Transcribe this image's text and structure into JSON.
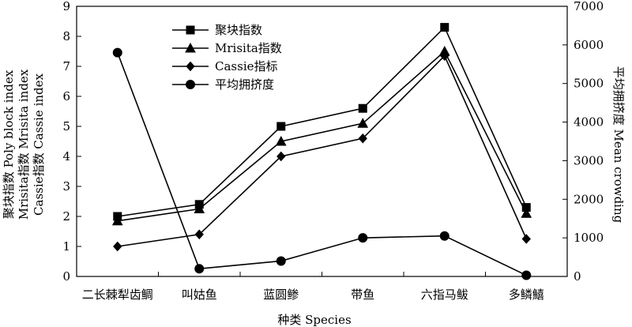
{
  "chart_data": {
    "type": "line",
    "categories": [
      "二长棘犁齿鲷",
      "叫姑鱼",
      "蓝圆鲹",
      "带鱼",
      "六指马鲅",
      "多鳞鱚"
    ],
    "xlabel": "种类 Species",
    "ylabel_left": [
      "聚块指数 Poly block index",
      "Mrisita指数 Mrisita index",
      "Cassie指数 Cassie index"
    ],
    "ylabel_right": "平均拥挤度 Mean crowding",
    "ylim_left": [
      0,
      9
    ],
    "yticks_left": [
      "0",
      "1",
      "2",
      "3",
      "4",
      "5",
      "6",
      "7",
      "8",
      "9"
    ],
    "ylim_right": [
      0,
      7000
    ],
    "yticks_right": [
      "0",
      "1000",
      "2000",
      "3000",
      "4000",
      "5000",
      "6000",
      "7000"
    ],
    "legend_position": "top-left",
    "grid": false,
    "series": [
      {
        "name": "聚块指数",
        "axis": "left",
        "marker": "square",
        "values": [
          2.0,
          2.4,
          5.0,
          5.6,
          8.3,
          2.3
        ]
      },
      {
        "name": "Mrisita指数",
        "axis": "left",
        "marker": "triangle",
        "values": [
          1.85,
          2.25,
          4.5,
          5.1,
          7.5,
          2.1
        ]
      },
      {
        "name": "Cassie指标",
        "axis": "left",
        "marker": "diamond",
        "values": [
          1.0,
          1.4,
          4.0,
          4.6,
          7.35,
          1.25
        ]
      },
      {
        "name": "平均拥挤度",
        "axis": "right",
        "marker": "circle",
        "values": [
          5800,
          200,
          400,
          1000,
          1050,
          30
        ]
      }
    ]
  }
}
